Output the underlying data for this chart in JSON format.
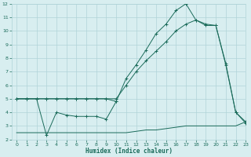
{
  "xlabel": "Humidex (Indice chaleur)",
  "x": [
    0,
    1,
    2,
    3,
    4,
    5,
    6,
    7,
    8,
    9,
    10,
    11,
    12,
    13,
    14,
    15,
    16,
    17,
    18,
    19,
    20,
    21,
    22,
    23
  ],
  "line1": [
    5,
    5,
    5,
    5,
    5,
    5,
    5,
    5,
    5,
    5,
    4.8,
    6.5,
    7.5,
    8.6,
    9.8,
    10.5,
    11.5,
    12.0,
    10.8,
    10.5,
    10.4,
    7.5,
    4.0,
    3.2
  ],
  "line2": [
    5,
    5,
    5,
    5,
    5,
    5,
    5,
    5,
    5,
    5,
    5.0,
    6.0,
    7.0,
    7.8,
    8.5,
    9.2,
    10.0,
    10.5,
    10.8,
    10.4,
    10.4,
    7.6,
    4.0,
    3.3
  ],
  "line3": [
    2.5,
    2.5,
    2.5,
    2.5,
    2.5,
    2.5,
    2.5,
    2.5,
    2.5,
    2.5,
    2.5,
    2.5,
    2.6,
    2.7,
    2.7,
    2.8,
    2.9,
    3.0,
    3.0,
    3.0,
    3.0,
    3.0,
    3.0,
    3.3
  ],
  "line4_x": [
    0,
    1,
    2,
    3,
    4,
    5,
    6,
    7,
    8,
    9,
    10
  ],
  "line4_y": [
    5,
    5,
    5,
    2.3,
    4.0,
    3.8,
    3.7,
    3.7,
    3.7,
    3.5,
    4.8
  ],
  "color": "#1a6b5a",
  "bg_color": "#d8eef0",
  "grid_color": "#b0d4d8",
  "ylim": [
    2,
    12
  ],
  "xlim": [
    -0.5,
    23
  ],
  "yticks": [
    2,
    3,
    4,
    5,
    6,
    7,
    8,
    9,
    10,
    11,
    12
  ],
  "xticks": [
    0,
    1,
    2,
    3,
    4,
    5,
    6,
    7,
    8,
    9,
    10,
    11,
    12,
    13,
    14,
    15,
    16,
    17,
    18,
    19,
    20,
    21,
    22,
    23
  ]
}
